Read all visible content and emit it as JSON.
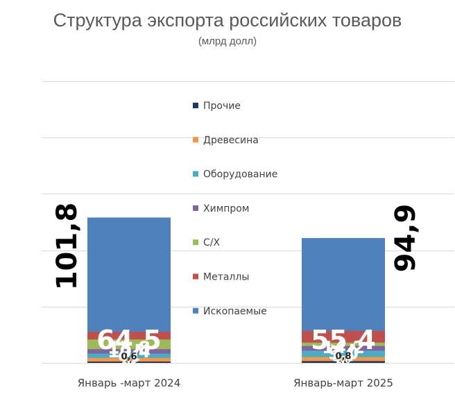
{
  "chart_data": {
    "type": "bar",
    "stacked": true,
    "title": "Структура экспорта российских товаров",
    "subtitle": "(млрд долл)",
    "categories": [
      "Январь -март 2024",
      "Январь-март 2025"
    ],
    "totals": [
      "101,8",
      "94,9"
    ],
    "series": [
      {
        "name": "Ископаемые",
        "color": "#4f81bd",
        "values": [
          64.5,
          55.4
        ],
        "labels": [
          "64,5",
          "55,4"
        ]
      },
      {
        "name": "Металлы",
        "color": "#c0504d",
        "values": [
          13.8,
          14.2
        ],
        "labels": [
          "13,8",
          "14,2"
        ]
      },
      {
        "name": "С/Х",
        "color": "#9bbb59",
        "values": [
          10.4,
          9.0
        ],
        "labels": [
          "10,4",
          "9,0"
        ]
      },
      {
        "name": "Химпром",
        "color": "#8064a2",
        "values": [
          6.1,
          7.5
        ],
        "labels": [
          "6,1",
          "7,5"
        ]
      },
      {
        "name": "Оборудование",
        "color": "#4bacc6",
        "values": [
          4.1,
          5.4
        ],
        "labels": [
          "4,1",
          "5,4"
        ]
      },
      {
        "name": "Древесина",
        "color": "#f79646",
        "values": [
          2.2,
          2.6
        ],
        "labels": [
          "2,2",
          "2,6"
        ]
      },
      {
        "name": "Прочие",
        "color": "#1f3864",
        "values": [
          0.6,
          0.8
        ],
        "labels": [
          "0,6",
          "0,8"
        ]
      }
    ],
    "ylim": [
      0,
      125
    ],
    "grid": true,
    "legend_position": "center"
  }
}
